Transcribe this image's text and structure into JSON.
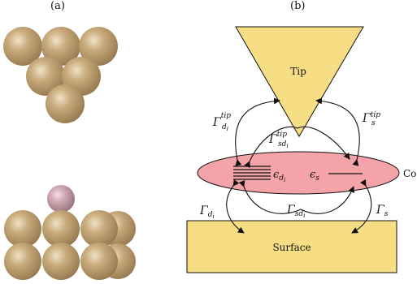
{
  "panel_labels": {
    "a": "(a)",
    "b": "(b)"
  },
  "labels": {
    "tip": "Tip",
    "surface": "Surface",
    "complex_cut": "Co"
  },
  "math_labels": {
    "gamma_tip_d": {
      "main": "Γ",
      "sup": "tip",
      "sub": "d",
      "subsub": "i"
    },
    "gamma_tip_s": {
      "main": "Γ",
      "sup": "tip",
      "sub": "s"
    },
    "gamma_tip_sd": {
      "main": "Γ",
      "sup": "tip",
      "sub": "sd",
      "subsub": "i"
    },
    "eps_d": {
      "main": "ϵ",
      "sub": "d",
      "subsub": "i"
    },
    "eps_s": {
      "main": "ϵ",
      "sub": "s"
    },
    "gamma_d": {
      "main": "Γ",
      "sub": "d",
      "subsub": "i"
    },
    "gamma_sd": {
      "main": "Γ",
      "sub": "sd",
      "subsub": "i"
    },
    "gamma_s": {
      "main": "Γ",
      "sub": "s"
    }
  },
  "colors": {
    "gold_fill": "#f7de85",
    "ellipse_fill": "#f4a3a8",
    "atom_gold": "#b89868",
    "atom_highlight": "#efe3c6",
    "adatom": "#c79aa6",
    "stroke": "#111111"
  }
}
